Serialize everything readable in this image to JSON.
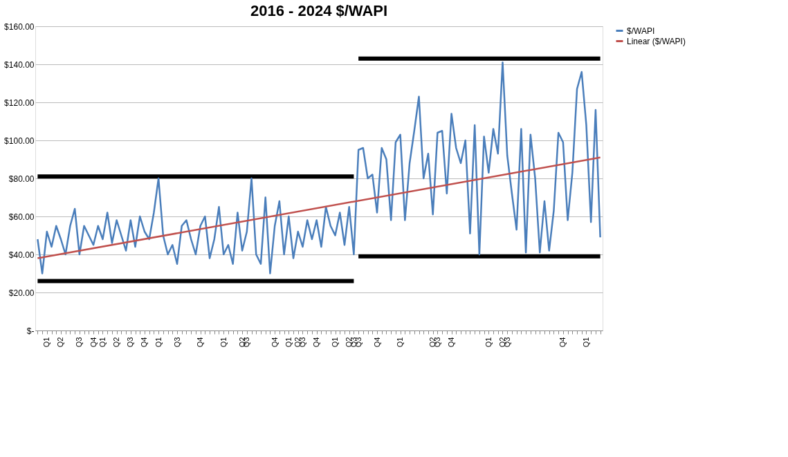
{
  "chart_data": {
    "type": "line",
    "title": "2016 - 2024 $/WAPI",
    "categories": [
      null,
      null,
      "Q1",
      null,
      null,
      "Q2",
      null,
      null,
      null,
      "Q3",
      null,
      null,
      "Q4",
      null,
      "Q1",
      null,
      null,
      "Q2",
      null,
      null,
      "Q3",
      null,
      null,
      "Q4",
      null,
      null,
      "Q1",
      null,
      null,
      null,
      "Q3",
      null,
      null,
      null,
      null,
      "Q4",
      null,
      null,
      null,
      null,
      "Q1",
      null,
      null,
      null,
      "Q2",
      "Q3",
      null,
      null,
      null,
      null,
      null,
      "Q4",
      null,
      null,
      "Q1",
      null,
      "Q2",
      "Q3",
      null,
      null,
      "Q4",
      null,
      null,
      null,
      "Q1",
      null,
      null,
      "Q2",
      "Q3",
      "Q3",
      null,
      null,
      null,
      "Q4",
      null,
      null,
      null,
      null,
      "Q1",
      null,
      null,
      null,
      null,
      null,
      null,
      "Q2",
      "Q3",
      null,
      null,
      "Q4",
      null,
      null,
      null,
      null,
      null,
      null,
      null,
      "Q1",
      null,
      null,
      "Q2",
      "Q3",
      null,
      null,
      null,
      null,
      null,
      null,
      null,
      null,
      null,
      null,
      null,
      "Q4",
      null,
      null,
      null,
      null,
      "Q1",
      null,
      null,
      null
    ],
    "ylim": [
      0,
      160
    ],
    "yticks": [
      {
        "value": 0,
        "label": "$-"
      },
      {
        "value": 20,
        "label": "$20.00"
      },
      {
        "value": 40,
        "label": "$40.00"
      },
      {
        "value": 60,
        "label": "$60.00"
      },
      {
        "value": 80,
        "label": "$80.00"
      },
      {
        "value": 100,
        "label": "$100.00"
      },
      {
        "value": 120,
        "label": "$120.00"
      },
      {
        "value": 140,
        "label": "$140.00"
      },
      {
        "value": 160,
        "label": "$160.00"
      }
    ],
    "grid": "y",
    "legend": "right",
    "series": [
      {
        "name": "$/WAPI",
        "color": "#4a7ebb",
        "values": [
          48,
          30,
          52,
          44,
          55,
          48,
          40,
          55,
          64,
          40,
          55,
          50,
          45,
          55,
          48,
          62,
          46,
          58,
          50,
          42,
          58,
          44,
          60,
          52,
          48,
          62,
          80,
          50,
          40,
          45,
          35,
          55,
          58,
          48,
          40,
          55,
          60,
          38,
          48,
          65,
          40,
          45,
          35,
          62,
          42,
          52,
          80,
          40,
          35,
          70,
          30,
          55,
          68,
          40,
          60,
          38,
          52,
          44,
          58,
          48,
          58,
          44,
          65,
          55,
          50,
          62,
          45,
          65,
          40,
          95,
          96,
          80,
          82,
          62,
          96,
          90,
          58,
          99,
          103,
          58,
          88,
          105,
          123,
          80,
          93,
          61,
          104,
          105,
          72,
          114,
          96,
          88,
          100,
          51,
          108,
          40,
          102,
          83,
          106,
          93,
          141,
          92,
          72,
          53,
          106,
          41,
          103,
          80,
          41,
          68,
          42,
          63,
          104,
          99,
          58,
          83,
          127,
          136,
          108,
          57,
          116,
          49
        ]
      },
      {
        "name": "Linear ($/WAPI)",
        "color": "#c0504d",
        "values": [
          38,
          null,
          null,
          null,
          null,
          null,
          null,
          null,
          null,
          null,
          null,
          null,
          null,
          null,
          null,
          null,
          null,
          null,
          null,
          null,
          null,
          null,
          null,
          null,
          null,
          null,
          null,
          null,
          null,
          null,
          null,
          null,
          null,
          null,
          null,
          null,
          null,
          null,
          null,
          null,
          null,
          null,
          null,
          null,
          null,
          null,
          null,
          null,
          null,
          null,
          null,
          null,
          null,
          null,
          null,
          null,
          null,
          null,
          null,
          null,
          null,
          null,
          null,
          null,
          null,
          null,
          null,
          null,
          null,
          null,
          null,
          null,
          null,
          null,
          null,
          null,
          null,
          null,
          null,
          null,
          null,
          null,
          null,
          null,
          null,
          null,
          null,
          null,
          null,
          null,
          null,
          null,
          null,
          null,
          null,
          null,
          null,
          null,
          null,
          null,
          null,
          null,
          null,
          null,
          null,
          null,
          null,
          null,
          null,
          null,
          null,
          null,
          null,
          null,
          null,
          null,
          null,
          null,
          null,
          null,
          null,
          91
        ]
      },
      {
        "color": "#000000",
        "values": [
          81,
          81,
          81,
          81,
          81,
          81,
          81,
          81,
          81,
          81,
          81,
          81,
          81,
          81,
          81,
          81,
          81,
          81,
          81,
          81,
          81,
          81,
          81,
          81,
          81,
          81,
          81,
          81,
          81,
          81,
          81,
          81,
          81,
          81,
          81,
          81,
          81,
          81,
          81,
          81,
          81,
          81,
          81,
          81,
          81,
          81,
          81,
          81,
          81,
          81,
          81,
          81,
          81,
          81,
          81,
          81,
          81,
          81,
          81,
          81,
          81,
          81,
          81,
          81,
          81,
          81,
          81,
          81,
          81,
          null,
          null,
          null,
          null,
          null,
          null,
          null,
          null,
          null,
          null,
          null,
          null,
          null,
          null,
          null,
          null,
          null,
          null,
          null,
          null,
          null,
          null,
          null,
          null,
          null,
          null,
          null,
          null,
          null,
          null,
          null,
          null,
          null,
          null,
          null,
          null,
          null,
          null,
          null,
          null,
          null,
          null,
          null,
          null,
          null,
          null,
          null,
          null,
          null,
          null,
          null,
          null,
          null
        ]
      },
      {
        "color": "#000000",
        "values": [
          26,
          26,
          26,
          26,
          26,
          26,
          26,
          26,
          26,
          26,
          26,
          26,
          26,
          26,
          26,
          26,
          26,
          26,
          26,
          26,
          26,
          26,
          26,
          26,
          26,
          26,
          26,
          26,
          26,
          26,
          26,
          26,
          26,
          26,
          26,
          26,
          26,
          26,
          26,
          26,
          26,
          26,
          26,
          26,
          26,
          26,
          26,
          26,
          26,
          26,
          26,
          26,
          26,
          26,
          26,
          26,
          26,
          26,
          26,
          26,
          26,
          26,
          26,
          26,
          26,
          26,
          26,
          26,
          26,
          null,
          null,
          null,
          null,
          null,
          null,
          null,
          null,
          null,
          null,
          null,
          null,
          null,
          null,
          null,
          null,
          null,
          null,
          null,
          null,
          null,
          null,
          null,
          null,
          null,
          null,
          null,
          null,
          null,
          null,
          null,
          null,
          null,
          null,
          null,
          null,
          null,
          null,
          null,
          null,
          null,
          null,
          null,
          null,
          null,
          null,
          null,
          null,
          null,
          null,
          null,
          null,
          null
        ]
      },
      {
        "color": "#000000",
        "values": [
          null,
          null,
          null,
          null,
          null,
          null,
          null,
          null,
          null,
          null,
          null,
          null,
          null,
          null,
          null,
          null,
          null,
          null,
          null,
          null,
          null,
          null,
          null,
          null,
          null,
          null,
          null,
          null,
          null,
          null,
          null,
          null,
          null,
          null,
          null,
          null,
          null,
          null,
          null,
          null,
          null,
          null,
          null,
          null,
          null,
          null,
          null,
          null,
          null,
          null,
          null,
          null,
          null,
          null,
          null,
          null,
          null,
          null,
          null,
          null,
          null,
          null,
          null,
          null,
          null,
          null,
          null,
          null,
          null,
          143,
          143,
          143,
          143,
          143,
          143,
          143,
          143,
          143,
          143,
          143,
          143,
          143,
          143,
          143,
          143,
          143,
          143,
          143,
          143,
          143,
          143,
          143,
          143,
          143,
          143,
          143,
          143,
          143,
          143,
          143,
          143,
          143,
          143,
          143,
          143,
          143,
          143,
          143,
          143,
          143,
          143,
          143,
          143,
          143,
          143,
          143,
          143,
          143,
          143,
          143,
          143,
          143
        ]
      },
      {
        "color": "#000000",
        "values": [
          null,
          null,
          null,
          null,
          null,
          null,
          null,
          null,
          null,
          null,
          null,
          null,
          null,
          null,
          null,
          null,
          null,
          null,
          null,
          null,
          null,
          null,
          null,
          null,
          null,
          null,
          null,
          null,
          null,
          null,
          null,
          null,
          null,
          null,
          null,
          null,
          null,
          null,
          null,
          null,
          null,
          null,
          null,
          null,
          null,
          null,
          null,
          null,
          null,
          null,
          null,
          null,
          null,
          null,
          null,
          null,
          null,
          null,
          null,
          null,
          null,
          null,
          null,
          null,
          null,
          null,
          null,
          null,
          null,
          39,
          39,
          39,
          39,
          39,
          39,
          39,
          39,
          39,
          39,
          39,
          39,
          39,
          39,
          39,
          39,
          39,
          39,
          39,
          39,
          39,
          39,
          39,
          39,
          39,
          39,
          39,
          39,
          39,
          39,
          39,
          39,
          39,
          39,
          39,
          39,
          39,
          39,
          39,
          39,
          39,
          39,
          39,
          39,
          39,
          39,
          39,
          39,
          39,
          39,
          39,
          39,
          39
        ]
      }
    ]
  }
}
